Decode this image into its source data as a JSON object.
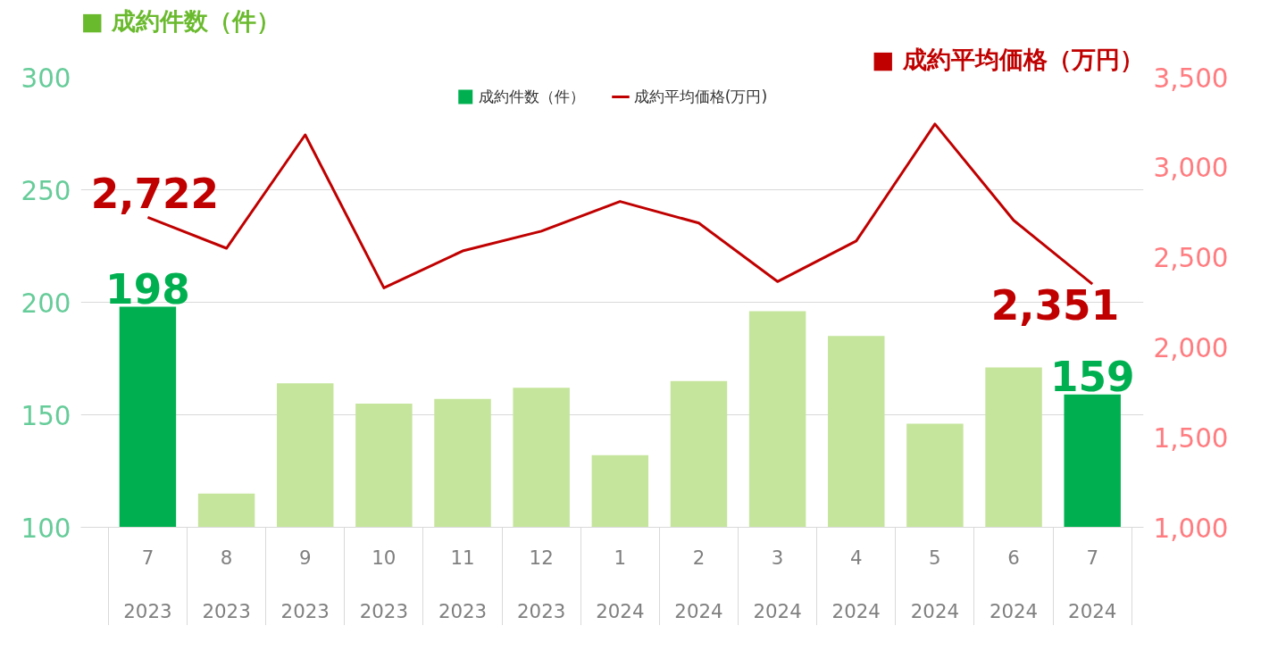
{
  "chart_data": {
    "type": "bar",
    "ylabel": "■ 成約件数（件）",
    "y2label": "■ 成約平均価格（万円）",
    "categories": [
      "7\n2023",
      "8\n2023",
      "9\n2023",
      "10\n2023",
      "11\n2023",
      "12\n2023",
      "1\n2024",
      "2\n2024",
      "3\n2024",
      "4\n2024",
      "5\n2024",
      "6\n2024",
      "7\n2024"
    ],
    "series": [
      {
        "name": "成約件数（件）",
        "color": "#c5e59c",
        "colors": [
          "#00b050",
          "#c5e59c",
          "#c5e59c",
          "#c5e59c",
          "#c5e59c",
          "#c5e59c",
          "#c5e59c",
          "#c5e59c",
          "#c5e59c",
          "#c5e59c",
          "#c5e59c",
          "#c5e59c",
          "#00b050"
        ],
        "values": [
          198,
          115,
          164,
          155,
          157,
          162,
          132,
          165,
          196,
          185,
          146,
          171,
          159
        ],
        "value_labels": [
          "198",
          null,
          null,
          null,
          null,
          null,
          null,
          null,
          null,
          null,
          null,
          null,
          "159"
        ]
      },
      {
        "name": "成約平均価格(万円)",
        "type": "line",
        "axis": "y2",
        "color": "#c00000",
        "values": [
          2722,
          2550,
          3180,
          2330,
          2535,
          2645,
          2810,
          2690,
          2365,
          2590,
          3240,
          2705,
          2351
        ],
        "value_labels": [
          "2,722",
          null,
          null,
          null,
          null,
          null,
          null,
          null,
          null,
          null,
          null,
          null,
          "2,351"
        ]
      }
    ],
    "ylim": [
      100,
      300
    ],
    "yticks": [
      100,
      150,
      200,
      250,
      300
    ],
    "y2lim": [
      1000,
      3500
    ],
    "y2ticks": [
      {
        "value": 1000,
        "label": "1,000"
      },
      {
        "value": 1500,
        "label": "1,500"
      },
      {
        "value": 2000,
        "label": "2,000"
      },
      {
        "value": 2500,
        "label": "2,500"
      },
      {
        "value": 3000,
        "label": "3,000"
      },
      {
        "value": 3500,
        "label": "3,500"
      }
    ],
    "grid": "y",
    "legend": "top",
    "marker": "none",
    "line_style": "solid"
  }
}
